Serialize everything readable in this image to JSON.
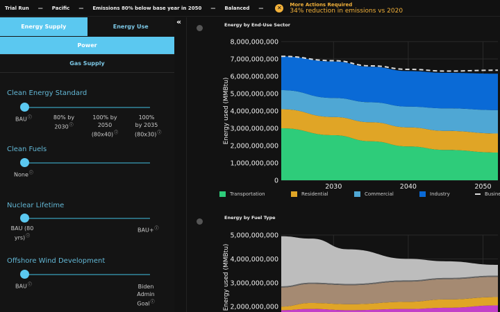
{
  "header": {
    "items": [
      "Trial Run",
      "Pacific",
      "Emissions 80% below base year in 2050",
      "Balanced"
    ],
    "separator": "—",
    "alert": {
      "icon": "close-circle-icon",
      "title": "More Actions Required",
      "message": "34% reduction in emissions vs 2020"
    }
  },
  "tabs": [
    {
      "label": "Energy Supply",
      "active": true
    },
    {
      "label": "Energy Use",
      "active": false
    }
  ],
  "subtabs": [
    {
      "label": "Power",
      "active": true
    },
    {
      "label": "Gas Supply",
      "active": false
    }
  ],
  "collapse_icon": "«",
  "controls": [
    {
      "title": "Clean Energy Standard",
      "value": 0,
      "options": [
        "BAU",
        "80% by 2030",
        "100% by 2050 (80x40)",
        "100% by 2035 (80x30)"
      ]
    },
    {
      "title": "Clean Fuels",
      "value": 0,
      "options": [
        "None"
      ]
    },
    {
      "title": "Nuclear Lifetime",
      "value": 0,
      "options": [
        "BAU (80 yrs)",
        "BAU+"
      ]
    },
    {
      "title": "Offshore Wind Development",
      "value": 0,
      "options": [
        "BAU",
        "Biden Admin Goal"
      ]
    }
  ],
  "chart_data": [
    {
      "type": "area",
      "stacked": true,
      "title": "Energy by End-Use Sector",
      "ylabel": "Energy used (MMBtu)",
      "ylim": [
        0,
        8000000000
      ],
      "xlim": [
        2023,
        2052
      ],
      "yticks": [
        "0",
        "1,000,000,000",
        "2,000,000,000",
        "3,000,000,000",
        "4,000,000,000",
        "5,000,000,000",
        "6,000,000,000",
        "7,000,000,000",
        "8,000,000,000"
      ],
      "xticks": [
        "2030",
        "2040",
        "2050"
      ],
      "grid": true,
      "legend": "bottom",
      "x": [
        2023,
        2030,
        2035,
        2040,
        2045,
        2052
      ],
      "series": [
        {
          "name": "Transportation",
          "color": "#2ecc7a",
          "values": [
            3000000000,
            2600000000,
            2250000000,
            1950000000,
            1750000000,
            1600000000
          ]
        },
        {
          "name": "Residential",
          "color": "#e0a526",
          "values": [
            1100000000,
            1050000000,
            1100000000,
            1100000000,
            1100000000,
            1100000000
          ]
        },
        {
          "name": "Commercial",
          "color": "#4fa7d4",
          "values": [
            1100000000,
            1100000000,
            1150000000,
            1200000000,
            1300000000,
            1350000000
          ]
        },
        {
          "name": "Industry",
          "color": "#0a6ad6",
          "values": [
            1950000000,
            2100000000,
            2050000000,
            2050000000,
            2050000000,
            2100000000
          ]
        }
      ],
      "line": {
        "name": "Busine",
        "color": "#dddddd",
        "dashed": true,
        "values": [
          7150000000,
          6900000000,
          6600000000,
          6400000000,
          6300000000,
          6350000000
        ]
      }
    },
    {
      "type": "area",
      "stacked": true,
      "title": "Energy by Fuel Type",
      "ylabel": "Energy used (MMBtu)",
      "ylim": [
        0,
        5000000000
      ],
      "xlim": [
        2023,
        2052
      ],
      "yticks": [
        "2,000,000,000",
        "3,000,000,000",
        "4,000,000,000",
        "5,000,000,000"
      ],
      "grid": true,
      "x": [
        2023,
        2027,
        2032,
        2040,
        2045,
        2052
      ],
      "series": [
        {
          "color": "#c240c8",
          "values": [
            1850000000,
            1900000000,
            1850000000,
            1900000000,
            1950000000,
            2050000000
          ]
        },
        {
          "color": "#e0a526",
          "values": [
            150000000,
            250000000,
            250000000,
            300000000,
            350000000,
            350000000
          ]
        },
        {
          "color": "#a58a72",
          "values": [
            800000000,
            800000000,
            800000000,
            850000000,
            850000000,
            850000000
          ]
        },
        {
          "color": "#666666",
          "values": [
            50000000,
            50000000,
            50000000,
            50000000,
            50000000,
            50000000
          ]
        },
        {
          "color": "#bdbdbd",
          "values": [
            2100000000,
            1850000000,
            1450000000,
            900000000,
            700000000,
            450000000
          ]
        }
      ]
    }
  ]
}
